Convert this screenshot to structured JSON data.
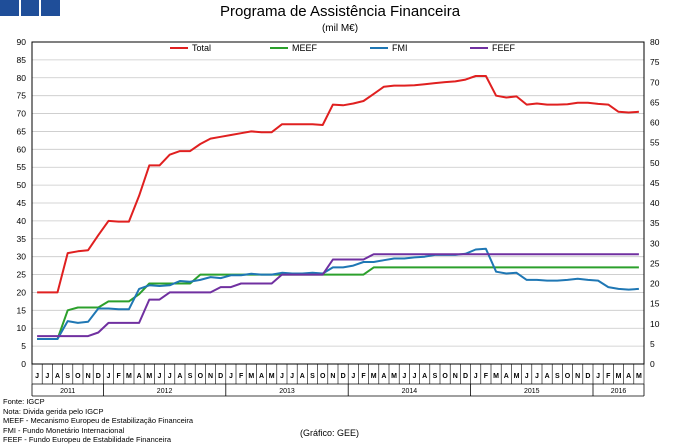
{
  "header": {
    "logo_name": "logo"
  },
  "notes": [
    "Fonte: IGCP",
    "Nota: Divida gerida pelo IGCP",
    "MEEF - Mecanismo Europeu de Estabilização Financeira",
    "FMI - Fundo Monetário Internacional",
    "FEEF - Fundo Europeu de Estabilidade Financeira"
  ],
  "credit": "(Gráfico: GEE)",
  "chart_data": {
    "type": "line",
    "title": "Programa de Assistência Financeira",
    "subtitle": "(mil M€)",
    "ylim": [
      0,
      90
    ],
    "y2lim": [
      0,
      80
    ],
    "yticks": [
      0,
      5,
      10,
      15,
      20,
      25,
      30,
      35,
      40,
      45,
      50,
      55,
      60,
      65,
      70,
      75,
      80,
      85,
      90
    ],
    "y2ticks": [
      0,
      5,
      10,
      15,
      20,
      25,
      30,
      35,
      40,
      45,
      50,
      55,
      60,
      65,
      70,
      75,
      80
    ],
    "grid": true,
    "legend_position": "top",
    "month_labels": [
      "J",
      "J",
      "A",
      "S",
      "O",
      "N",
      "D",
      "J",
      "F",
      "M",
      "A",
      "M",
      "J",
      "J",
      "A",
      "S",
      "O",
      "N",
      "D",
      "J",
      "F",
      "M",
      "A",
      "M",
      "J",
      "J",
      "A",
      "S",
      "O",
      "N",
      "D",
      "J",
      "F",
      "M",
      "A",
      "M",
      "J",
      "J",
      "A",
      "S",
      "O",
      "N",
      "D",
      "J",
      "F",
      "M",
      "A",
      "M",
      "J",
      "J",
      "A",
      "S",
      "O",
      "N",
      "D",
      "J",
      "F",
      "M",
      "A",
      "M"
    ],
    "year_labels": [
      {
        "label": "2011",
        "start": 0,
        "count": 7
      },
      {
        "label": "2012",
        "start": 7,
        "count": 12
      },
      {
        "label": "2013",
        "start": 19,
        "count": 12
      },
      {
        "label": "2014",
        "start": 31,
        "count": 12
      },
      {
        "label": "2015",
        "start": 43,
        "count": 12
      },
      {
        "label": "2016",
        "start": 55,
        "count": 5
      }
    ],
    "series": [
      {
        "name": "Total",
        "color": "#e02020",
        "axis": "left",
        "values": [
          20,
          20,
          20,
          31,
          31.5,
          31.8,
          36,
          40,
          39.8,
          39.8,
          47,
          55.5,
          55.5,
          58.5,
          59.5,
          59.5,
          61.5,
          63,
          63.5,
          64,
          64.5,
          65,
          64.8,
          64.8,
          67,
          67,
          67,
          67,
          66.8,
          72.5,
          72.3,
          72.8,
          73.5,
          75.5,
          77.5,
          77.8,
          77.8,
          77.9,
          78.2,
          78.5,
          78.8,
          79,
          79.5,
          80.5,
          80.5,
          75,
          74.5,
          74.8,
          72.5,
          72.8,
          72.5,
          72.5,
          72.6,
          73,
          73,
          72.7,
          72.5,
          70.5,
          70.3,
          70.5
        ]
      },
      {
        "name": "MEEF",
        "color": "#2ca02c",
        "axis": "left",
        "values": [
          7,
          7,
          7,
          15,
          15.8,
          15.8,
          15.8,
          17.5,
          17.5,
          17.5,
          19.5,
          22.5,
          22.5,
          22.5,
          22.5,
          22.5,
          25,
          25,
          25,
          25,
          25,
          25,
          25,
          25,
          25,
          25,
          25,
          25,
          25,
          25,
          25,
          25,
          25,
          27,
          27,
          27,
          27,
          27,
          27,
          27,
          27,
          27,
          27,
          27,
          27,
          27,
          27,
          27,
          27,
          27,
          27,
          27,
          27,
          27,
          27,
          27,
          27,
          27,
          27,
          27
        ]
      },
      {
        "name": "FMI",
        "color": "#1f77b4",
        "axis": "left",
        "values": [
          7,
          7,
          7,
          12,
          11.5,
          11.8,
          15.5,
          15.5,
          15.3,
          15.3,
          21,
          22,
          21.8,
          22,
          23.2,
          23,
          23.5,
          24.3,
          24,
          24.8,
          24.8,
          25.2,
          25,
          25,
          25.5,
          25.3,
          25.3,
          25.5,
          25.3,
          27,
          27,
          27.5,
          28.5,
          28.5,
          29,
          29.5,
          29.5,
          29.8,
          30,
          30.5,
          30.5,
          30.5,
          30.8,
          32,
          32.2,
          25.8,
          25.3,
          25.5,
          23.5,
          23.5,
          23.3,
          23.3,
          23.5,
          23.8,
          23.5,
          23.3,
          21.5,
          21,
          20.8,
          21
        ]
      },
      {
        "name": "FEEF",
        "color": "#7030a0",
        "axis": "left",
        "values": [
          7.8,
          7.8,
          7.8,
          7.8,
          7.8,
          7.8,
          8.8,
          11.5,
          11.5,
          11.5,
          11.5,
          18,
          18,
          20,
          20,
          20,
          20,
          20,
          21.5,
          21.5,
          22.5,
          22.5,
          22.5,
          22.5,
          25,
          25,
          25,
          25,
          25,
          29.2,
          29.2,
          29.2,
          29.2,
          30.7,
          30.7,
          30.7,
          30.7,
          30.7,
          30.7,
          30.7,
          30.7,
          30.7,
          30.7,
          30.7,
          30.7,
          30.7,
          30.7,
          30.7,
          30.7,
          30.7,
          30.7,
          30.7,
          30.7,
          30.7,
          30.7,
          30.7,
          30.7,
          30.7,
          30.7,
          30.7
        ]
      }
    ]
  }
}
